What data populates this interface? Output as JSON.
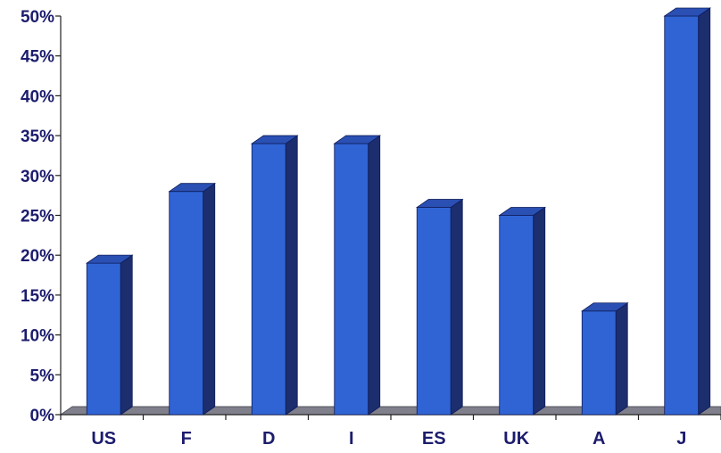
{
  "chart_data": {
    "type": "bar",
    "title": "",
    "xlabel": "",
    "ylabel": "",
    "categories": [
      "US",
      "F",
      "D",
      "I",
      "ES",
      "UK",
      "A",
      "J"
    ],
    "values": [
      19,
      28,
      34,
      34,
      26,
      25,
      13,
      50
    ],
    "ylim": [
      0,
      50
    ],
    "yticks": [
      0,
      5,
      10,
      15,
      20,
      25,
      30,
      35,
      40,
      45,
      50
    ],
    "ytick_labels": [
      "0%",
      "5%",
      "10%",
      "15%",
      "20%",
      "25%",
      "30%",
      "35%",
      "40%",
      "45%",
      "50%"
    ],
    "grid": false,
    "legend": "none",
    "style": "3d",
    "colors": {
      "bar_front": "#3064d4",
      "bar_top": "#2a50b4",
      "bar_side": "#1c2e6e",
      "floor": "#80808c",
      "axis": "#222222",
      "label": "#1c1c6e"
    }
  }
}
